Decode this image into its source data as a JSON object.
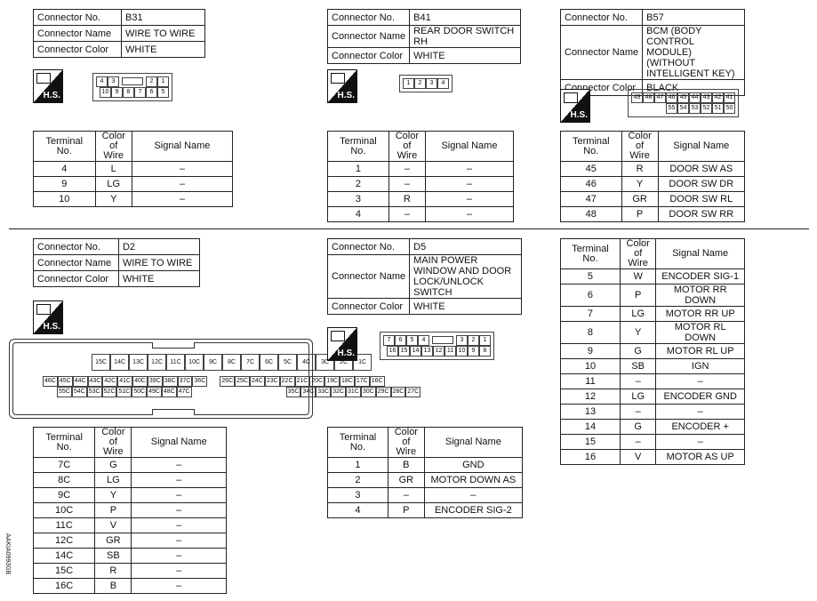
{
  "side_code": "AAKIA0993GB",
  "icon_label": "H.S.",
  "labels": {
    "connector_no": "Connector No.",
    "connector_name": "Connector Name",
    "connector_color": "Connector Color",
    "terminal_no": "Terminal No.",
    "color_of_wire": "Color of Wire",
    "signal_name": "Signal Name"
  },
  "connectors": [
    {
      "no": "B31",
      "name": "WIRE TO WIRE",
      "color": "WHITE",
      "pins": [
        [
          "4",
          "3",
          "#KEY",
          "2",
          "1"
        ],
        [
          "10",
          "9",
          "8",
          "7",
          "6",
          "5"
        ]
      ],
      "terminals": [
        [
          "4",
          "L",
          "–"
        ],
        [
          "9",
          "LG",
          "–"
        ],
        [
          "10",
          "Y",
          "–"
        ]
      ]
    },
    {
      "no": "B41",
      "name": "REAR DOOR SWITCH RH",
      "color": "WHITE",
      "pins": [
        [
          "1",
          "2",
          "3",
          "4"
        ]
      ],
      "terminals": [
        [
          "1",
          "–",
          "–"
        ],
        [
          "2",
          "–",
          "–"
        ],
        [
          "3",
          "R",
          "–"
        ],
        [
          "4",
          "–",
          "–"
        ]
      ]
    },
    {
      "no": "B57",
      "name": "BCM (BODY CONTROL MODULE) (WITHOUT INTELLIGENT KEY)",
      "color": "BLACK",
      "pins": [
        [
          "49",
          "48",
          "47",
          "46",
          "45",
          "44",
          "43",
          "42",
          "41"
        ],
        [
          "55",
          "54",
          "53",
          "52",
          "51",
          "50"
        ]
      ],
      "terminals": [
        [
          "45",
          "R",
          "DOOR SW AS"
        ],
        [
          "46",
          "Y",
          "DOOR SW DR"
        ],
        [
          "47",
          "GR",
          "DOOR SW RL"
        ],
        [
          "48",
          "P",
          "DOOR SW RR"
        ]
      ]
    },
    {
      "no": "D2",
      "name": "WIRE TO WIRE",
      "color": "WHITE",
      "pins": [
        [
          "15C",
          "14C",
          "13C",
          "12C",
          "11C",
          "10C",
          "9C",
          "8C",
          "7C",
          "6C",
          "5C",
          "4C",
          "3C",
          "2C",
          "1C"
        ],
        [
          "46C",
          "45C",
          "44C",
          "43C",
          "42C",
          "41C",
          "40C",
          "39C",
          "38C",
          "37C",
          "36C",
          "#GAP",
          "26C",
          "25C",
          "24C",
          "23C",
          "22C",
          "21C",
          "20C",
          "19C",
          "18C",
          "17C",
          "16C"
        ],
        [
          "55C",
          "54C",
          "53C",
          "52C",
          "51C",
          "50C",
          "49C",
          "48C",
          "47C",
          "#GAP",
          "35C",
          "34C",
          "33C",
          "32C",
          "31C",
          "30C",
          "29C",
          "28C",
          "27C"
        ]
      ],
      "terminals": [
        [
          "7C",
          "G",
          "–"
        ],
        [
          "8C",
          "LG",
          "–"
        ],
        [
          "9C",
          "Y",
          "–"
        ],
        [
          "10C",
          "P",
          "–"
        ],
        [
          "11C",
          "V",
          "–"
        ],
        [
          "12C",
          "GR",
          "–"
        ],
        [
          "14C",
          "SB",
          "–"
        ],
        [
          "15C",
          "R",
          "–"
        ],
        [
          "16C",
          "B",
          "–"
        ]
      ]
    },
    {
      "no": "D5",
      "name": "MAIN POWER WINDOW AND DOOR LOCK/UNLOCK SWITCH",
      "color": "WHITE",
      "pins": [
        [
          "7",
          "6",
          "5",
          "4",
          "#KEY",
          "3",
          "2",
          "1"
        ],
        [
          "16",
          "15",
          "14",
          "13",
          "12",
          "11",
          "10",
          "9",
          "8"
        ]
      ],
      "terminals": [
        [
          "1",
          "B",
          "GND"
        ],
        [
          "2",
          "GR",
          "MOTOR DOWN AS"
        ],
        [
          "3",
          "–",
          "–"
        ],
        [
          "4",
          "P",
          "ENCODER SIG-2"
        ]
      ]
    }
  ],
  "d5_continued": [
    [
      "5",
      "W",
      "ENCODER SIG-1"
    ],
    [
      "6",
      "P",
      "MOTOR RR DOWN"
    ],
    [
      "7",
      "LG",
      "MOTOR RR UP"
    ],
    [
      "8",
      "Y",
      "MOTOR RL DOWN"
    ],
    [
      "9",
      "G",
      "MOTOR RL UP"
    ],
    [
      "10",
      "SB",
      "IGN"
    ],
    [
      "11",
      "–",
      "–"
    ],
    [
      "12",
      "LG",
      "ENCODER GND"
    ],
    [
      "13",
      "–",
      "–"
    ],
    [
      "14",
      "G",
      "ENCODER +"
    ],
    [
      "15",
      "–",
      "–"
    ],
    [
      "16",
      "V",
      "MOTOR AS UP"
    ]
  ]
}
